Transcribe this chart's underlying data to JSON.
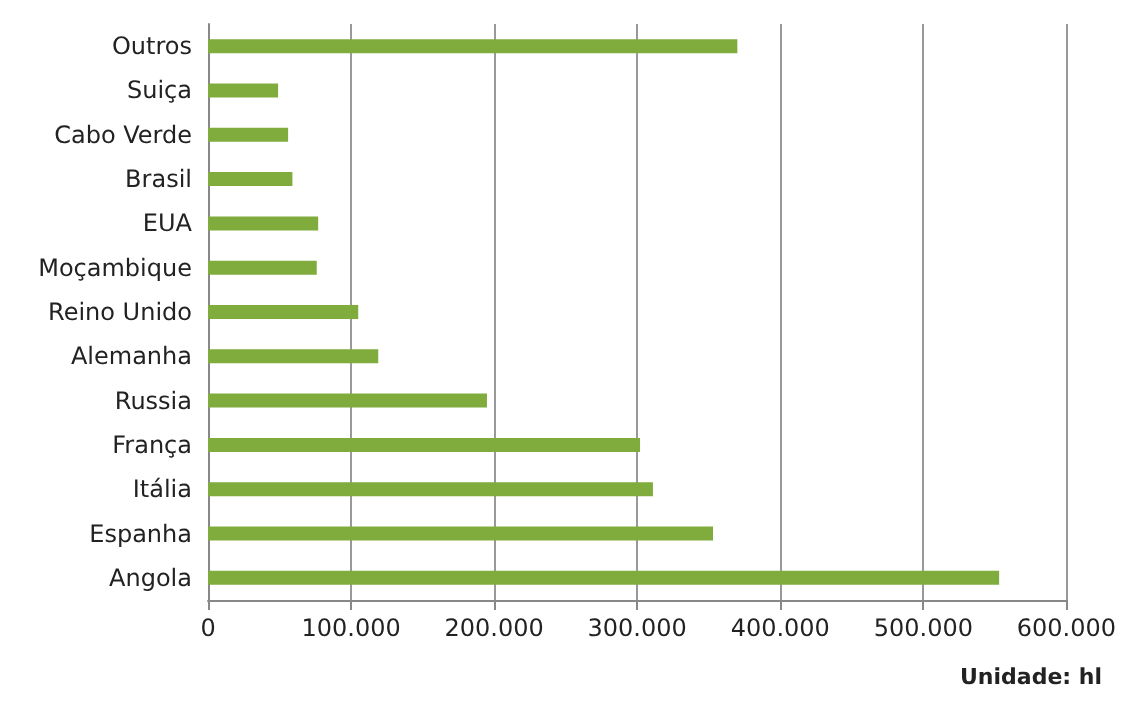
{
  "chart_data": {
    "type": "bar",
    "orientation": "horizontal",
    "categories": [
      "Outros",
      "Suiça",
      "Cabo Verde",
      "Brasil",
      "EUA",
      "Moçambique",
      "Reino Unido",
      "Alemanha",
      "Russia",
      "França",
      "Itália",
      "Espanha",
      "Angola"
    ],
    "values": [
      370000,
      49000,
      56000,
      59000,
      77000,
      76000,
      105000,
      119000,
      195000,
      302000,
      311000,
      353000,
      553000
    ],
    "color": "#7fac3c",
    "xlim": [
      0,
      600000
    ],
    "xticks": [
      0,
      {
        "value": 100000,
        "label": "100.000"
      },
      {
        "value": 200000,
        "label": "200.000"
      },
      {
        "value": 300000,
        "label": "300.000"
      },
      {
        "value": 400000,
        "label": "400.000"
      },
      {
        "value": 500000,
        "label": "500.000"
      },
      {
        "value": 600000,
        "label": "600.000"
      }
    ],
    "grid": "x",
    "annotations": [
      "Unidade: hl"
    ]
  }
}
